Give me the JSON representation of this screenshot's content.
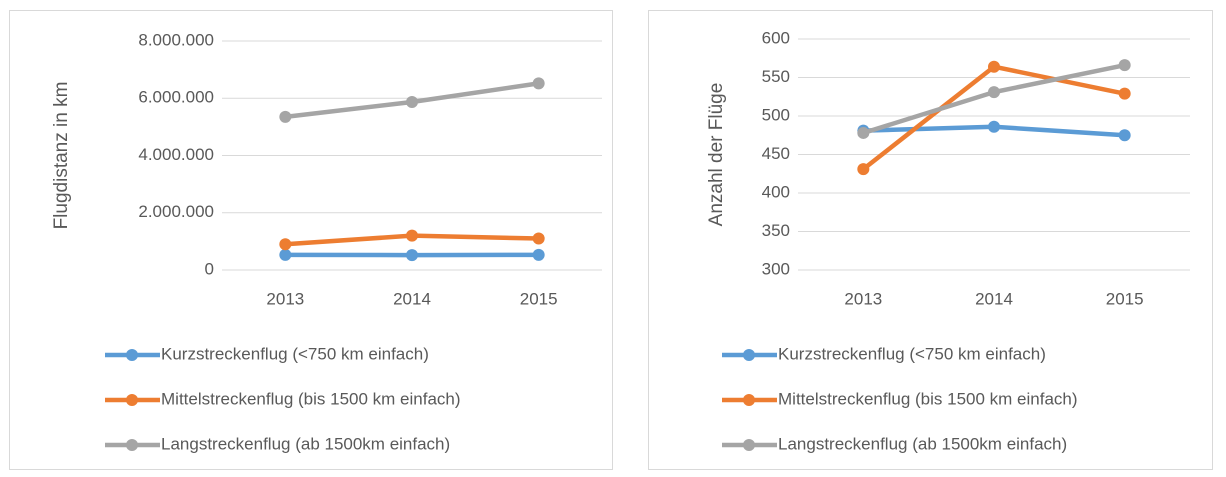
{
  "chart_data": [
    {
      "type": "line",
      "y_label": "Flugdistanz in km",
      "categories": [
        "2013",
        "2014",
        "2015"
      ],
      "ylim": [
        0,
        8000000
      ],
      "yticks": [
        0,
        {
          "value": 2000000,
          "label": "2.000.000"
        },
        {
          "value": 4000000,
          "label": "4.000.000"
        },
        {
          "value": 6000000,
          "label": "6.000.000"
        },
        {
          "value": 8000000,
          "label": "8.000.000"
        }
      ],
      "grid": true,
      "legend": "bottom",
      "series": [
        {
          "name": "Kurzstreckenflug (<750 km einfach)",
          "color": "#5b9bd5",
          "values": [
            530000,
            520000,
            530000
          ]
        },
        {
          "name": "Mittelstreckenflug (bis 1500 km einfach)",
          "color": "#ed7d31",
          "values": [
            900000,
            1200000,
            1100000
          ]
        },
        {
          "name": "Langstreckenflug (ab 1500km einfach)",
          "color": "#a5a5a5",
          "values": [
            5350000,
            5870000,
            6520000
          ]
        }
      ]
    },
    {
      "type": "line",
      "y_label": "Anzahl der Flüge",
      "categories": [
        "2013",
        "2014",
        "2015"
      ],
      "ylim": [
        300,
        600
      ],
      "yticks": [
        300,
        350,
        400,
        450,
        500,
        550,
        600
      ],
      "grid": true,
      "legend": "bottom",
      "series": [
        {
          "name": "Kurzstreckenflug (<750 km einfach)",
          "color": "#5b9bd5",
          "values": [
            481,
            486,
            475
          ]
        },
        {
          "name": "Mittelstreckenflug (bis 1500 km einfach)",
          "color": "#ed7d31",
          "values": [
            431,
            564,
            529
          ]
        },
        {
          "name": "Langstreckenflug (ab 1500km einfach)",
          "color": "#a5a5a5",
          "values": [
            478,
            531,
            566
          ]
        }
      ]
    }
  ]
}
